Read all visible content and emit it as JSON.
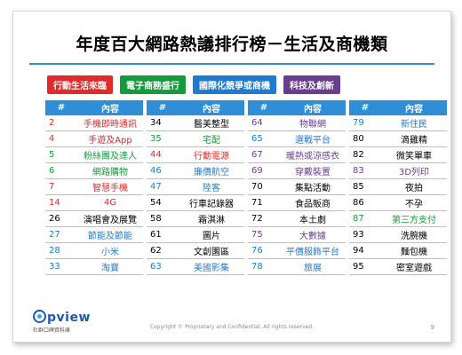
{
  "title": "年度百大網路熱議排行榜－生活及商機類",
  "colors": {
    "blue_header": "#2f8fd6",
    "red": "#e02b2b",
    "green": "#169b3c",
    "blue": "#1f7bd0",
    "purple": "#6a3d8f",
    "black": "#000000"
  },
  "legend": [
    {
      "label": "行動生活來臨",
      "color": "#e02b2b"
    },
    {
      "label": "電子商務盛行",
      "color": "#169b3c"
    },
    {
      "label": "國際化競爭或商機",
      "color": "#1f7bd0"
    },
    {
      "label": "科技及創新",
      "color": "#6a3d8f"
    }
  ],
  "table_headers": {
    "num": "#",
    "item": "內容"
  },
  "columns": [
    [
      {
        "num": "2",
        "item": "手機即時通訊",
        "c": "red"
      },
      {
        "num": "4",
        "item": "手遊及App",
        "c": "red"
      },
      {
        "num": "5",
        "item": "粉絲團及達人",
        "c": "green"
      },
      {
        "num": "6",
        "item": "網路購物",
        "c": "green"
      },
      {
        "num": "7",
        "item": "智慧手機",
        "c": "red"
      },
      {
        "num": "14",
        "item": "4G",
        "c": "red"
      },
      {
        "num": "26",
        "item": "演唱會及展覽",
        "c": "black"
      },
      {
        "num": "27",
        "item": "節能及節能",
        "c": "blue"
      },
      {
        "num": "28",
        "item": "小米",
        "c": "blue"
      },
      {
        "num": "33",
        "item": "淘寶",
        "c": "blue"
      }
    ],
    [
      {
        "num": "34",
        "item": "醫美整型",
        "c": "black"
      },
      {
        "num": "35",
        "item": "宅配",
        "c": "green"
      },
      {
        "num": "44",
        "item": "行動電源",
        "c": "red"
      },
      {
        "num": "46",
        "item": "廉價航空",
        "c": "blue"
      },
      {
        "num": "47",
        "item": "陸客",
        "c": "blue"
      },
      {
        "num": "54",
        "item": "行車記錄器",
        "c": "black"
      },
      {
        "num": "58",
        "item": "霜淇淋",
        "c": "black"
      },
      {
        "num": "61",
        "item": "圖片",
        "c": "black"
      },
      {
        "num": "62",
        "item": "文創園區",
        "c": "black"
      },
      {
        "num": "63",
        "item": "美國影集",
        "c": "blue"
      }
    ],
    [
      {
        "num": "64",
        "item": "物聯網",
        "c": "purple"
      },
      {
        "num": "65",
        "item": "選戰平台",
        "c": "blue"
      },
      {
        "num": "67",
        "item": "暖熱或涼感衣",
        "c": "purple"
      },
      {
        "num": "69",
        "item": "穿戴裝置",
        "c": "purple"
      },
      {
        "num": "70",
        "item": "集點活動",
        "c": "black"
      },
      {
        "num": "71",
        "item": "食品販商",
        "c": "black"
      },
      {
        "num": "72",
        "item": "本土劇",
        "c": "black"
      },
      {
        "num": "75",
        "item": "大數據",
        "c": "purple"
      },
      {
        "num": "76",
        "item": "平價服飾平台",
        "c": "blue"
      },
      {
        "num": "78",
        "item": "旅展",
        "c": "blue"
      }
    ],
    [
      {
        "num": "79",
        "item": "新住民",
        "c": "blue"
      },
      {
        "num": "80",
        "item": "滴雞精",
        "c": "black"
      },
      {
        "num": "82",
        "item": "微笑單車",
        "c": "black"
      },
      {
        "num": "83",
        "item": "3D列印",
        "c": "purple"
      },
      {
        "num": "85",
        "item": "夜拍",
        "c": "black"
      },
      {
        "num": "86",
        "item": "不孕",
        "c": "black"
      },
      {
        "num": "87",
        "item": "第三方支付",
        "c": "green"
      },
      {
        "num": "93",
        "item": "洗腕機",
        "c": "black"
      },
      {
        "num": "94",
        "item": "麵包機",
        "c": "black"
      },
      {
        "num": "95",
        "item": "密室遊戲",
        "c": "black"
      }
    ]
  ],
  "logo": {
    "name": "pview",
    "subtitle": "杜群口碑資料庫"
  },
  "footer": {
    "copyright": "Copyright © Proprietary and Confidential. All rights reserved.",
    "page": "9"
  }
}
